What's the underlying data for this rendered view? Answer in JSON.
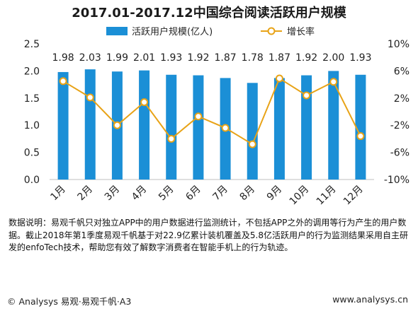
{
  "colors": {
    "bar": "#1b8fd6",
    "line": "#e8a317",
    "marker_fill": "#ffffff",
    "label": "#222222"
  },
  "chart_data": {
    "type": "bar",
    "title": "2017.01-2017.12中国综合阅读活跃用户规模",
    "categories": [
      "1月",
      "2月",
      "3月",
      "4月",
      "5月",
      "6月",
      "7月",
      "8月",
      "9月",
      "10月",
      "11月",
      "12月"
    ],
    "series": [
      {
        "name": "活跃用户规模(亿人)",
        "type": "bar",
        "axis": "left",
        "values": [
          1.98,
          2.03,
          1.99,
          2.01,
          1.93,
          1.92,
          1.87,
          1.78,
          1.87,
          1.92,
          2.0,
          1.93
        ]
      },
      {
        "name": "增长率",
        "type": "line",
        "axis": "right",
        "unit": "%",
        "values": [
          4.5,
          2.1,
          -2.0,
          1.4,
          -4.0,
          -0.7,
          -2.4,
          -4.8,
          4.9,
          2.4,
          4.4,
          -3.6
        ]
      }
    ],
    "yleft": {
      "lim": [
        0,
        2.5
      ],
      "ticks": [
        "0.0",
        "0.5",
        "1.0",
        "1.5",
        "2.0",
        "2.5"
      ]
    },
    "yright": {
      "lim": [
        -10,
        10
      ],
      "ticks": [
        "-10%",
        "-6%",
        "-2%",
        "2%",
        "6%",
        "10%"
      ]
    },
    "grid": false,
    "legend": "top"
  },
  "note": "数据说明：易观千帆只对独立APP中的用户数据进行监测统计，不包括APP之外的调用等行为产生的用户数据。截止2018年第1季度易观千帆基于对22.9亿累计装机覆盖及5.8亿活跃用户的行为监测结果采用自主研发的enfoTech技术，帮助您有效了解数字消费者在智能手机上的行为轨迹。",
  "footer": {
    "left": "© Analysys 易观·易观千帆·A3",
    "right": "www.analysys.cn"
  }
}
